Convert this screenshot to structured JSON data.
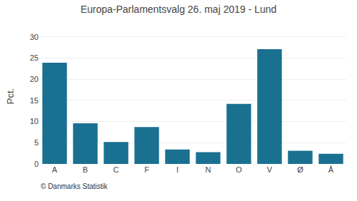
{
  "chart_data": {
    "type": "bar",
    "title": "Europa-Parlamentsvalg 26. maj 2019 - Lund",
    "categories": [
      "A",
      "B",
      "C",
      "F",
      "I",
      "N",
      "O",
      "V",
      "Ø",
      "Å"
    ],
    "values": [
      23.9,
      9.6,
      5.2,
      8.7,
      3.4,
      2.8,
      14.2,
      27.1,
      3.1,
      2.4
    ],
    "color": "#1a7090",
    "ylabel": "Pct.",
    "footer": "© Danmarks Statistik",
    "ylim": [
      0,
      32
    ],
    "yticks": [
      0,
      5,
      10,
      15,
      20,
      25,
      30
    ],
    "grid": true
  }
}
